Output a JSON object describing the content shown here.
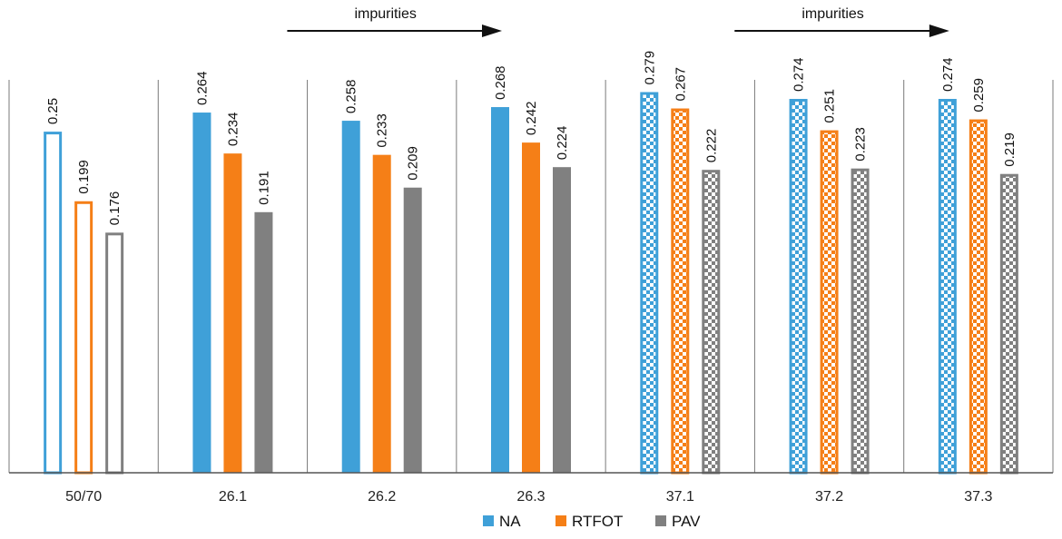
{
  "chart_data": {
    "type": "bar",
    "title": "",
    "xlabel": "",
    "ylabel": "",
    "ylim": [
      0,
      0.3
    ],
    "grid": false,
    "categories": [
      "50/70",
      "26.1",
      "26.2",
      "26.3",
      "37.1",
      "37.2",
      "37.3"
    ],
    "series": [
      {
        "name": "NA",
        "color": "#3fa0d8",
        "values": [
          0.25,
          0.264,
          0.258,
          0.268,
          0.279,
          0.274,
          0.274
        ]
      },
      {
        "name": "RTFOT",
        "color": "#f57f17",
        "values": [
          0.199,
          0.234,
          0.233,
          0.242,
          0.267,
          0.251,
          0.259
        ]
      },
      {
        "name": "PAV",
        "color": "#808080",
        "values": [
          0.176,
          0.191,
          0.209,
          0.224,
          0.222,
          0.223,
          0.219
        ]
      }
    ],
    "value_labels": [
      [
        "0.25",
        "0.264",
        "0.258",
        "0.268",
        "0.279",
        "0.274",
        "0.274"
      ],
      [
        "0.199",
        "0.234",
        "0.233",
        "0.242",
        "0.267",
        "0.251",
        "0.259"
      ],
      [
        "0.176",
        "0.191",
        "0.209",
        "0.224",
        "0.222",
        "0.223",
        "0.219"
      ]
    ],
    "bar_style": [
      "outline",
      "solid",
      "solid",
      "solid",
      "checkered",
      "checkered",
      "checkered"
    ],
    "annotations": [
      {
        "text": "impurities",
        "from_category": "26.1",
        "to_category": "26.3"
      },
      {
        "text": "impurities",
        "from_category": "37.1",
        "to_category": "37.3"
      }
    ],
    "legend": {
      "position": "bottom",
      "entries": [
        "NA",
        "RTFOT",
        "PAV"
      ]
    }
  }
}
